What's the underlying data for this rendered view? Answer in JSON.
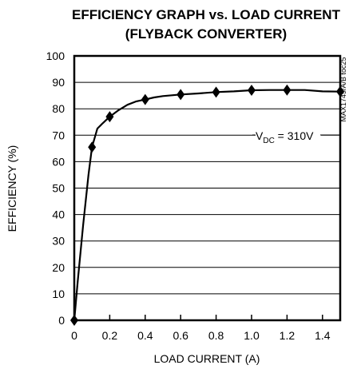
{
  "chart_data": {
    "type": "line",
    "title": "EFFICIENCY GRAPH vs. LOAD CURRENT",
    "subtitle": "(FLYBACK CONVERTER)",
    "xlabel": "LOAD CURRENT (A)",
    "ylabel": "EFFICIENCY (%)",
    "xlim": [
      0,
      1.5
    ],
    "ylim": [
      0,
      100
    ],
    "xticks": [
      "0",
      "0.2",
      "0.4",
      "0.6",
      "0.8",
      "1.0",
      "1.2",
      "1.4"
    ],
    "yticks": [
      "0",
      "10",
      "20",
      "30",
      "40",
      "50",
      "60",
      "70",
      "80",
      "90",
      "100"
    ],
    "grid": "horizontal",
    "series": [
      {
        "curve_x": [
          0,
          0.02,
          0.05,
          0.08,
          0.1,
          0.13,
          0.16,
          0.2,
          0.25,
          0.3,
          0.35,
          0.4,
          0.45,
          0.5,
          0.6,
          0.7,
          0.8,
          0.9,
          1.0,
          1.1,
          1.2,
          1.3,
          1.4,
          1.5
        ],
        "curve_y": [
          0,
          15,
          36,
          55,
          65.5,
          72.5,
          74.5,
          77,
          79.5,
          81.5,
          82.8,
          83.5,
          84.3,
          84.8,
          85.4,
          85.8,
          86.3,
          86.6,
          87,
          87.1,
          87.1,
          87.1,
          86.6,
          86.5
        ],
        "points_x": [
          0,
          0.1,
          0.2,
          0.4,
          0.6,
          0.8,
          1.0,
          1.2,
          1.5
        ],
        "points_y": [
          0,
          65.5,
          77,
          83.5,
          85.4,
          86.3,
          87,
          87.1,
          86.5
        ]
      }
    ],
    "annotation": {
      "prefix": "V",
      "subscript": "DC",
      "rest": " = 310V"
    },
    "figure_code": "MAX1749/A/B toc25"
  }
}
